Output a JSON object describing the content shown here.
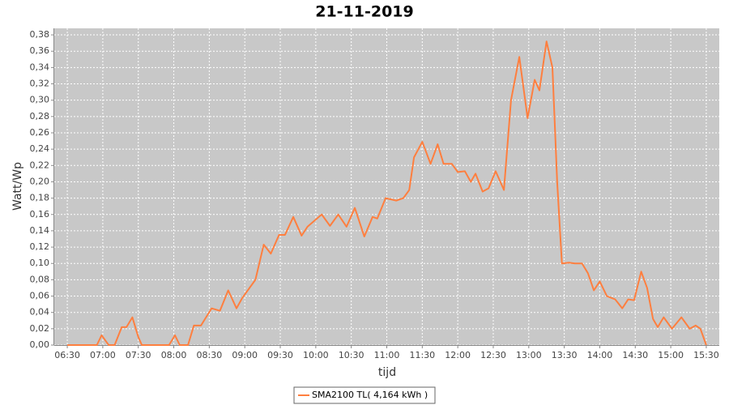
{
  "chart_data": {
    "type": "line",
    "title": "21-11-2019",
    "x_label": "tijd",
    "y_label": "Watt/Wp",
    "x": [
      "06:30",
      "06:55",
      "06:59",
      "07:05",
      "07:10",
      "07:16",
      "07:20",
      "07:25",
      "07:30",
      "07:33",
      "07:36",
      "07:56",
      "08:01",
      "08:05",
      "08:12",
      "08:17",
      "08:23",
      "08:32",
      "08:39",
      "08:46",
      "08:53",
      "08:58",
      "09:09",
      "09:16",
      "09:22",
      "09:29",
      "09:34",
      "09:41",
      "09:48",
      "09:53",
      "10:05",
      "10:12",
      "10:19",
      "10:26",
      "10:33",
      "10:41",
      "10:48",
      "10:52",
      "10:59",
      "11:08",
      "11:14",
      "11:19",
      "11:23",
      "11:30",
      "11:37",
      "11:43",
      "11:48",
      "11:55",
      "12:00",
      "12:06",
      "12:11",
      "12:15",
      "12:21",
      "12:26",
      "12:32",
      "12:39",
      "12:45",
      "12:52",
      "12:59",
      "13:05",
      "13:09",
      "13:15",
      "13:20",
      "13:24",
      "13:28",
      "13:34",
      "13:39",
      "13:45",
      "13:50",
      "13:55",
      "14:00",
      "14:06",
      "14:13",
      "14:19",
      "14:24",
      "14:29",
      "14:35",
      "14:40",
      "14:45",
      "14:49",
      "14:54",
      "15:01",
      "15:09",
      "15:16",
      "15:21",
      "15:25",
      "15:30"
    ],
    "series": [
      {
        "name": "SMA2100 TL( 4,164 kWh )",
        "color": "#ff7f3f",
        "values": [
          0,
          0,
          0.012,
          0,
          0,
          0.022,
          0.022,
          0.034,
          0.01,
          0,
          0,
          0,
          0.012,
          0,
          0,
          0.024,
          0.024,
          0.045,
          0.042,
          0.067,
          0.045,
          0.058,
          0.08,
          0.123,
          0.112,
          0.135,
          0.135,
          0.157,
          0.134,
          0.145,
          0.16,
          0.146,
          0.16,
          0.145,
          0.168,
          0.133,
          0.157,
          0.155,
          0.18,
          0.177,
          0.18,
          0.19,
          0.23,
          0.249,
          0.222,
          0.246,
          0.222,
          0.222,
          0.212,
          0.213,
          0.2,
          0.21,
          0.188,
          0.192,
          0.213,
          0.19,
          0.3,
          0.353,
          0.278,
          0.325,
          0.312,
          0.372,
          0.34,
          0.2,
          0.1,
          0.101,
          0.1,
          0.1,
          0.088,
          0.067,
          0.078,
          0.06,
          0.056,
          0.045,
          0.056,
          0.055,
          0.09,
          0.07,
          0.032,
          0.022,
          0.034,
          0.02,
          0.034,
          0.02,
          0.024,
          0.02,
          0
        ]
      }
    ],
    "xlim": [
      "06:19",
      "15:41"
    ],
    "xticks": [
      "06:30",
      "07:00",
      "07:30",
      "08:00",
      "08:30",
      "09:00",
      "09:30",
      "10:00",
      "10:30",
      "11:00",
      "11:30",
      "12:00",
      "12:30",
      "13:00",
      "13:30",
      "14:00",
      "14:30",
      "15:00",
      "15:30"
    ],
    "ylim": [
      0,
      0.388
    ],
    "yticks": [
      {
        "value": 0,
        "label": "0,00"
      },
      {
        "value": 0.02,
        "label": "0,02"
      },
      {
        "value": 0.04,
        "label": "0,04"
      },
      {
        "value": 0.06,
        "label": "0,06"
      },
      {
        "value": 0.08,
        "label": "0,08"
      },
      {
        "value": 0.1,
        "label": "0,10"
      },
      {
        "value": 0.12,
        "label": "0,12"
      },
      {
        "value": 0.14,
        "label": "0,14"
      },
      {
        "value": 0.16,
        "label": "0,16"
      },
      {
        "value": 0.18,
        "label": "0,18"
      },
      {
        "value": 0.2,
        "label": "0,20"
      },
      {
        "value": 0.22,
        "label": "0,22"
      },
      {
        "value": 0.24,
        "label": "0,24"
      },
      {
        "value": 0.26,
        "label": "0,26"
      },
      {
        "value": 0.28,
        "label": "0,28"
      },
      {
        "value": 0.3,
        "label": "0,30"
      },
      {
        "value": 0.32,
        "label": "0,32"
      },
      {
        "value": 0.34,
        "label": "0,34"
      },
      {
        "value": 0.36,
        "label": "0,36"
      },
      {
        "value": 0.38,
        "label": "0,38"
      }
    ],
    "grid": true
  }
}
